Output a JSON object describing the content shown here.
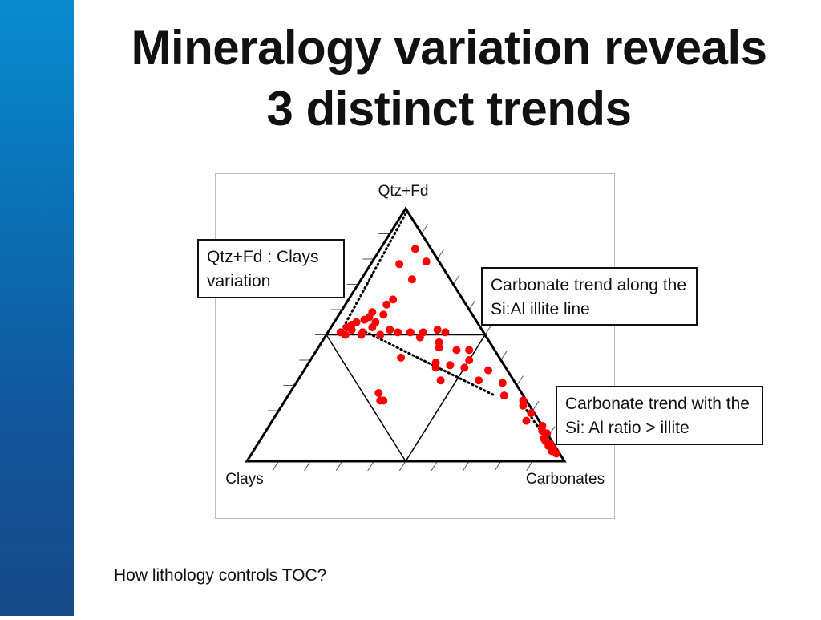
{
  "title": {
    "line1": "Mineralogy variation reveals",
    "line2": "3 distinct trends"
  },
  "colors": {
    "sidebar_top": "#0a8bd0",
    "sidebar_bottom": "#174a88",
    "points": "#ff0000",
    "lines": "#000000"
  },
  "chart_data": {
    "type": "scatter",
    "subtype": "ternary",
    "vertices": {
      "top": "Qtz+Fd",
      "bottom_left": "Clays",
      "bottom_right": "Carbonates"
    },
    "ticks_per_side": 10,
    "grid": "inner triangle at 50% midpoints",
    "points_note": "[qtzfd, clays, carbonates] fractions",
    "points": [
      [
        0.84,
        0.05,
        0.11
      ],
      [
        0.79,
        0.04,
        0.17
      ],
      [
        0.78,
        0.13,
        0.09
      ],
      [
        0.72,
        0.12,
        0.16
      ],
      [
        0.64,
        0.22,
        0.14
      ],
      [
        0.62,
        0.25,
        0.13
      ],
      [
        0.59,
        0.31,
        0.1
      ],
      [
        0.58,
        0.28,
        0.14
      ],
      [
        0.57,
        0.33,
        0.1
      ],
      [
        0.56,
        0.35,
        0.09
      ],
      [
        0.55,
        0.38,
        0.07
      ],
      [
        0.54,
        0.4,
        0.06
      ],
      [
        0.53,
        0.42,
        0.05
      ],
      [
        0.52,
        0.41,
        0.07
      ],
      [
        0.51,
        0.45,
        0.04
      ],
      [
        0.5,
        0.44,
        0.06
      ],
      [
        0.55,
        0.32,
        0.13
      ],
      [
        0.53,
        0.34,
        0.13
      ],
      [
        0.51,
        0.38,
        0.11
      ],
      [
        0.5,
        0.39,
        0.11
      ],
      [
        0.52,
        0.29,
        0.19
      ],
      [
        0.5,
        0.33,
        0.17
      ],
      [
        0.51,
        0.27,
        0.22
      ],
      [
        0.51,
        0.23,
        0.26
      ],
      [
        0.51,
        0.19,
        0.3
      ],
      [
        0.52,
        0.14,
        0.34
      ],
      [
        0.51,
        0.12,
        0.37
      ],
      [
        0.49,
        0.21,
        0.3
      ],
      [
        0.47,
        0.16,
        0.37
      ],
      [
        0.45,
        0.17,
        0.38
      ],
      [
        0.44,
        0.12,
        0.44
      ],
      [
        0.44,
        0.08,
        0.48
      ],
      [
        0.4,
        0.1,
        0.5
      ],
      [
        0.37,
        0.13,
        0.5
      ],
      [
        0.36,
        0.06,
        0.58
      ],
      [
        0.32,
        0.11,
        0.57
      ],
      [
        0.31,
        0.04,
        0.65
      ],
      [
        0.26,
        0.06,
        0.68
      ],
      [
        0.24,
        0.01,
        0.75
      ],
      [
        0.22,
        0.02,
        0.76
      ],
      [
        0.19,
        0.01,
        0.8
      ],
      [
        0.16,
        0.04,
        0.8
      ],
      [
        0.14,
        0.0,
        0.86
      ],
      [
        0.12,
        0.01,
        0.87
      ],
      [
        0.11,
        0.0,
        0.89
      ],
      [
        0.09,
        0.02,
        0.89
      ],
      [
        0.08,
        0.02,
        0.9
      ],
      [
        0.07,
        0.01,
        0.92
      ],
      [
        0.06,
        0.02,
        0.92
      ],
      [
        0.05,
        0.01,
        0.94
      ],
      [
        0.04,
        0.02,
        0.94
      ],
      [
        0.03,
        0.01,
        0.96
      ],
      [
        0.41,
        0.31,
        0.28
      ],
      [
        0.37,
        0.22,
        0.41
      ],
      [
        0.38,
        0.17,
        0.45
      ],
      [
        0.27,
        0.45,
        0.28
      ],
      [
        0.24,
        0.45,
        0.31
      ],
      [
        0.24,
        0.46,
        0.3
      ],
      [
        0.32,
        0.23,
        0.45
      ],
      [
        0.39,
        0.21,
        0.4
      ]
    ],
    "trend_lines_note": "dotted lines, [qtzfd, clays, carbonates] endpoints",
    "trend_lines": [
      [
        [
          0.98,
          0.01,
          0.01
        ],
        [
          0.51,
          0.45,
          0.04
        ]
      ],
      [
        [
          0.52,
          0.38,
          0.1
        ],
        [
          0.26,
          0.09,
          0.65
        ]
      ],
      [
        [
          0.23,
          0.02,
          0.75
        ],
        [
          0.02,
          0.01,
          0.97
        ]
      ]
    ],
    "annotations": [
      "Qtz+Fd : Clays variation",
      "Carbonate trend along the Si:Al illite line",
      "Carbonate trend with the Si: Al ratio > illite"
    ]
  },
  "annotations": {
    "a1": "Qtz+Fd : Clays variation",
    "a2": "Carbonate trend along the Si:Al illite line",
    "a3": "Carbonate trend with the Si: Al ratio > illite"
  },
  "footer": "How lithology controls TOC?"
}
